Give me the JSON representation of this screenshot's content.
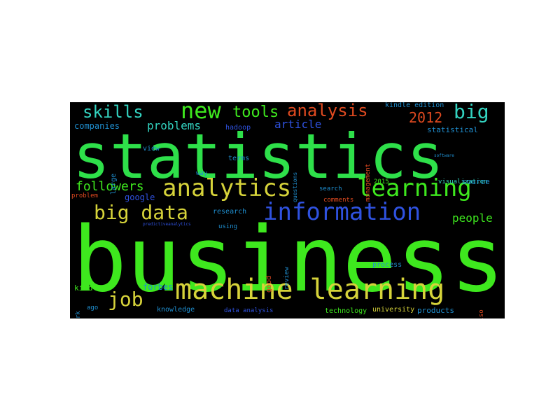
{
  "colors": {
    "background": "#000000",
    "green": "#3ee81e",
    "bright_green": "#2ee04a",
    "yellow": "#d6d33a",
    "blue": "#2f52e0",
    "cyan": "#33d3c0",
    "orange_red": "#e04a20",
    "teal_blue": "#1f8fd0"
  },
  "words": [
    {
      "id": "w-business",
      "text": "business",
      "color": "#3ee81e"
    },
    {
      "id": "w-statistics",
      "text": "statistics",
      "color": "#2ee04a"
    },
    {
      "id": "w-machine-learning",
      "text": "machine learning",
      "color": "#d6d33a"
    },
    {
      "id": "w-analytics",
      "text": "analytics",
      "color": "#d6d33a"
    },
    {
      "id": "w-learning",
      "text": "learning",
      "color": "#3ee81e"
    },
    {
      "id": "w-information",
      "text": "information",
      "color": "#2f52e0"
    },
    {
      "id": "w-big-data",
      "text": "big data",
      "color": "#d6d33a"
    },
    {
      "id": "w-new",
      "text": "new",
      "color": "#3ee81e"
    },
    {
      "id": "w-analysis",
      "text": "analysis",
      "color": "#e04a20"
    },
    {
      "id": "w-big",
      "text": "big",
      "color": "#33d3c0"
    },
    {
      "id": "w-skills",
      "text": "skills",
      "color": "#33d3c0"
    },
    {
      "id": "w-job",
      "text": "job",
      "color": "#d6d33a"
    },
    {
      "id": "w-tools",
      "text": "tools",
      "color": "#3ee81e"
    },
    {
      "id": "w-2012",
      "text": "2012",
      "color": "#e04a20"
    },
    {
      "id": "w-followers",
      "text": "followers",
      "color": "#3ee81e"
    },
    {
      "id": "w-problems",
      "text": "problems",
      "color": "#33d3c0"
    },
    {
      "id": "w-article",
      "text": "article",
      "color": "#2f52e0"
    },
    {
      "id": "w-people",
      "text": "people",
      "color": "#3ee81e"
    },
    {
      "id": "w-companies",
      "text": "companies",
      "color": "#1f8fd0"
    },
    {
      "id": "w-google",
      "text": "google",
      "color": "#2f52e0"
    },
    {
      "id": "w-forbes",
      "text": "forbes",
      "color": "#1f8fd0"
    },
    {
      "id": "w-kindle",
      "text": "kindle",
      "color": "#3ee81e"
    },
    {
      "id": "w-statistical",
      "text": "statistical",
      "color": "#1f8fd0"
    },
    {
      "id": "w-kindle-edition",
      "text": "kindle edition",
      "color": "#1f8fd0"
    },
    {
      "id": "w-hadoop",
      "text": "hadoop",
      "color": "#2f52e0"
    },
    {
      "id": "w-knowledge",
      "text": "knowledge",
      "color": "#1f8fd0"
    },
    {
      "id": "w-data-analysis",
      "text": "data analysis",
      "color": "#2f52e0"
    },
    {
      "id": "w-technology",
      "text": "technology",
      "color": "#3ee81e"
    },
    {
      "id": "w-university",
      "text": "university",
      "color": "#d6d33a"
    },
    {
      "id": "w-products",
      "text": "products",
      "color": "#1f8fd0"
    },
    {
      "id": "w-visualization",
      "text": "visualization",
      "color": "#33d3c0"
    },
    {
      "id": "w-source",
      "text": "source",
      "color": "#1f8fd0"
    },
    {
      "id": "w-search",
      "text": "search",
      "color": "#1f8fd0"
    },
    {
      "id": "w-comments",
      "text": "comments",
      "color": "#e04a20"
    },
    {
      "id": "w-2015",
      "text": "2015",
      "color": "#3ee81e"
    },
    {
      "id": "w-research",
      "text": "research",
      "color": "#1f8fd0"
    },
    {
      "id": "w-using",
      "text": "using",
      "color": "#1f8fd0"
    },
    {
      "id": "w-process",
      "text": "process",
      "color": "#1f8fd0"
    },
    {
      "id": "w-review",
      "text": "review",
      "color": "#1f8fd0"
    },
    {
      "id": "w-view",
      "text": "view",
      "color": "#1f8fd0"
    },
    {
      "id": "w-way",
      "text": "way",
      "color": "#1f8fd0"
    },
    {
      "id": "w-terms",
      "text": "terms",
      "color": "#1f8fd0"
    },
    {
      "id": "w-large",
      "text": "large",
      "color": "#1f8fd0"
    },
    {
      "id": "w-work",
      "text": "work",
      "color": "#1f8fd0"
    },
    {
      "id": "w-ago",
      "text": "ago",
      "color": "#1f8fd0"
    },
    {
      "id": "w-also",
      "text": "also",
      "color": "#e04a20"
    },
    {
      "id": "w-good",
      "text": "good",
      "color": "#e04a20"
    },
    {
      "id": "w-problem",
      "text": "problem",
      "color": "#e04a20"
    },
    {
      "id": "w-management",
      "text": "management",
      "color": "#e04a20"
    },
    {
      "id": "w-questions",
      "text": "questions",
      "color": "#1f8fd0"
    },
    {
      "id": "w-predictiveanalytics",
      "text": "predictiveanalytics",
      "color": "#2f52e0"
    },
    {
      "id": "w-software",
      "text": "software",
      "color": "#1f8fd0"
    }
  ]
}
